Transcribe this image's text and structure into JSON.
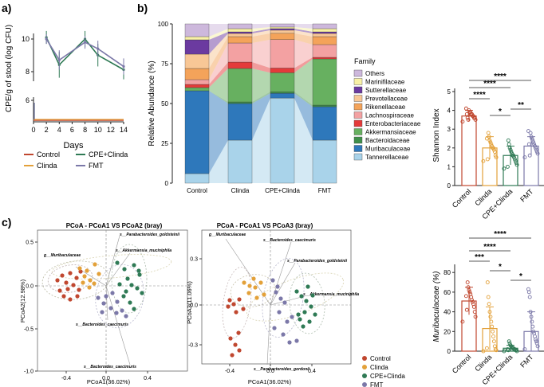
{
  "panel_labels": {
    "a": "a)",
    "b": "b)",
    "c": "c)"
  },
  "colors": {
    "control": "#c0472f",
    "clinda": "#e3a13a",
    "cpe_clinda": "#2f7a55",
    "fmt": "#7b78a8"
  },
  "groups": [
    "Control",
    "Clinda",
    "CPE+Clinda",
    "FMT"
  ],
  "stars": {
    "s4": "****",
    "s3": "***",
    "s2": "**",
    "s1": "*"
  },
  "panel_c": {
    "pcoa1_title": "PCoA - PCoA1 VS PCoA2 (bray)",
    "pcoa2_title": "PCoA - PCoA1 VS PCoA3 (bray)",
    "pcoa1_xlabel": "PCoA1(36.02%)",
    "pcoa1_ylabel": "PCoA2(12.98%)",
    "pcoa2_xlabel": "PCoA1(36.02%)",
    "pcoa2_ylabel": "PCoA3(11.06%)",
    "p1_xticks": [
      "-0.4",
      "0.0",
      "0.4"
    ],
    "p1_yticks": [
      "0.5",
      "0.0",
      "-0.5",
      "-1.0"
    ],
    "p2_xticks": [
      "-0.4",
      "0.0",
      "0.4"
    ],
    "p2_yticks": [
      "0.3",
      "0.0",
      "-0.3"
    ],
    "p1_vectors": [
      "s__Parabacteroides_goldsteinii",
      "s__Akkermansia_muciniphila",
      "g__Muribaculaceae",
      "s__Bacteroides_caecimuris",
      "s__Bacteroides_caecimuris"
    ],
    "p2_vectors": [
      "g__Muribaculaceae",
      "s__Bacteroides_caecimuris",
      "s__Parabacteroides_goldsteinii",
      "s__Akkermansia_muciniphila",
      "s__Parabacteroides_gordonii"
    ],
    "legend": [
      "Control",
      "Clinda",
      "CPE+Clinda",
      "FMT"
    ]
  },
  "chart_data": [
    {
      "id": "a",
      "type": "line",
      "title": "",
      "xlabel": "Days",
      "ylabel": "CPE/g of stool (log CFU)",
      "x": [
        0,
        2,
        4,
        8,
        10,
        14
      ],
      "xticks": [
        "0",
        "2",
        "4",
        "6",
        "8",
        "10",
        "12",
        "14"
      ],
      "yticks": [
        "6",
        "8",
        "10"
      ],
      "ylim": [
        0,
        11
      ],
      "series": [
        {
          "name": "Control",
          "values": [
            0,
            0,
            0,
            0,
            0,
            0
          ]
        },
        {
          "name": "Clinda",
          "values": [
            0,
            0,
            0,
            0,
            0,
            0
          ]
        },
        {
          "name": "CPE+Clinda",
          "values": [
            0,
            10.0,
            8.3,
            9.9,
            8.9,
            8.0
          ]
        },
        {
          "name": "FMT",
          "values": [
            0,
            9.9,
            8.6,
            9.7,
            9.3,
            8.2
          ]
        }
      ],
      "legend": [
        "Control",
        "Clinda",
        "CPE+Clinda",
        "FMT"
      ]
    },
    {
      "id": "b",
      "type": "bar",
      "stacked": true,
      "ylabel": "Relative Abundance (%)",
      "yticks": [
        "0",
        "25",
        "50",
        "75",
        "100"
      ],
      "ylim": [
        0,
        100
      ],
      "categories": [
        "Control",
        "Clinda",
        "CPE+Clinda",
        "FMT"
      ],
      "legend_title": "Family",
      "series": [
        {
          "name": "Tannerellaceae",
          "color": "#a9d3ea",
          "values": [
            6,
            27,
            54,
            27
          ]
        },
        {
          "name": "Muribaculaceae",
          "color": "#2e78bb",
          "values": [
            52,
            23,
            3,
            21
          ]
        },
        {
          "name": "Bacteroidaceae",
          "color": "#3f8f4a",
          "values": [
            0,
            1,
            1,
            1
          ]
        },
        {
          "name": "Akkermansiaceae",
          "color": "#67b060",
          "values": [
            2,
            21,
            12,
            29
          ]
        },
        {
          "name": "Enterobacteriaceae",
          "color": "#e43a3a",
          "values": [
            2,
            4,
            3,
            1
          ]
        },
        {
          "name": "Lachnospiraceae",
          "color": "#f3a1a2",
          "values": [
            3,
            12,
            18,
            8
          ]
        },
        {
          "name": "Rikenellaceae",
          "color": "#f4a35a",
          "values": [
            7,
            4,
            4,
            5
          ]
        },
        {
          "name": "Prevotellaceae",
          "color": "#f8c796",
          "values": [
            9,
            2,
            2,
            2
          ]
        },
        {
          "name": "Sutterellaceae",
          "color": "#6b3aa0",
          "values": [
            9,
            1,
            1,
            1
          ]
        },
        {
          "name": "Marinifilaceae",
          "color": "#f8f1a6",
          "values": [
            2,
            2,
            1,
            2
          ]
        },
        {
          "name": "Others",
          "color": "#cdb8dc",
          "values": [
            8,
            3,
            2,
            3
          ]
        }
      ]
    },
    {
      "id": "b-shannon",
      "type": "bar",
      "ylabel": "Shannon Index",
      "categories": [
        "Control",
        "Clinda",
        "CPE+Clinda",
        "FMT"
      ],
      "values": [
        3.7,
        2.0,
        1.6,
        2.1
      ],
      "errors": [
        0.3,
        0.6,
        0.5,
        0.5
      ],
      "yticks": [
        "0",
        "1",
        "2",
        "3",
        "4",
        "5"
      ],
      "ylim": [
        0,
        5
      ],
      "points": [
        [
          3.4,
          3.5,
          3.6,
          3.6,
          3.7,
          3.7,
          3.8,
          3.8,
          3.9,
          3.9,
          4.0,
          3.5,
          3.6,
          3.8,
          4.1
        ],
        [
          1.3,
          1.5,
          1.6,
          1.8,
          1.9,
          2.0,
          2.0,
          2.1,
          2.2,
          2.3,
          2.4,
          2.6,
          2.8,
          1.4,
          2.5
        ],
        [
          0.9,
          1.1,
          1.2,
          1.3,
          1.4,
          1.5,
          1.6,
          1.6,
          1.7,
          1.8,
          1.9,
          2.0,
          2.2,
          2.4,
          1.0
        ],
        [
          1.5,
          1.7,
          1.8,
          1.9,
          2.0,
          2.1,
          2.2,
          2.3,
          2.4,
          2.5,
          2.6,
          2.8,
          1.6,
          2.2,
          2.9
        ]
      ]
    },
    {
      "id": "c-muribaculaceae",
      "type": "bar",
      "ylabel": "Muribaculaceae (%)",
      "categories": [
        "Control",
        "Clinda",
        "CPE+Clinda",
        "FMT"
      ],
      "values": [
        51,
        23,
        3,
        20
      ],
      "errors": [
        14,
        22,
        3,
        20
      ],
      "yticks": [
        "0",
        "20",
        "40",
        "60",
        "80"
      ],
      "ylim": [
        0,
        85
      ],
      "points": [
        [
          30,
          35,
          40,
          45,
          48,
          50,
          52,
          55,
          58,
          60,
          62,
          65,
          70,
          42,
          56
        ],
        [
          0,
          1,
          2,
          5,
          10,
          15,
          20,
          25,
          30,
          35,
          40,
          48,
          55,
          70,
          3
        ],
        [
          0,
          0,
          1,
          1,
          2,
          2,
          3,
          3,
          4,
          5,
          6,
          8,
          10,
          1,
          2
        ],
        [
          2,
          5,
          8,
          10,
          12,
          15,
          18,
          20,
          25,
          30,
          35,
          40,
          55,
          60,
          63
        ]
      ]
    }
  ]
}
